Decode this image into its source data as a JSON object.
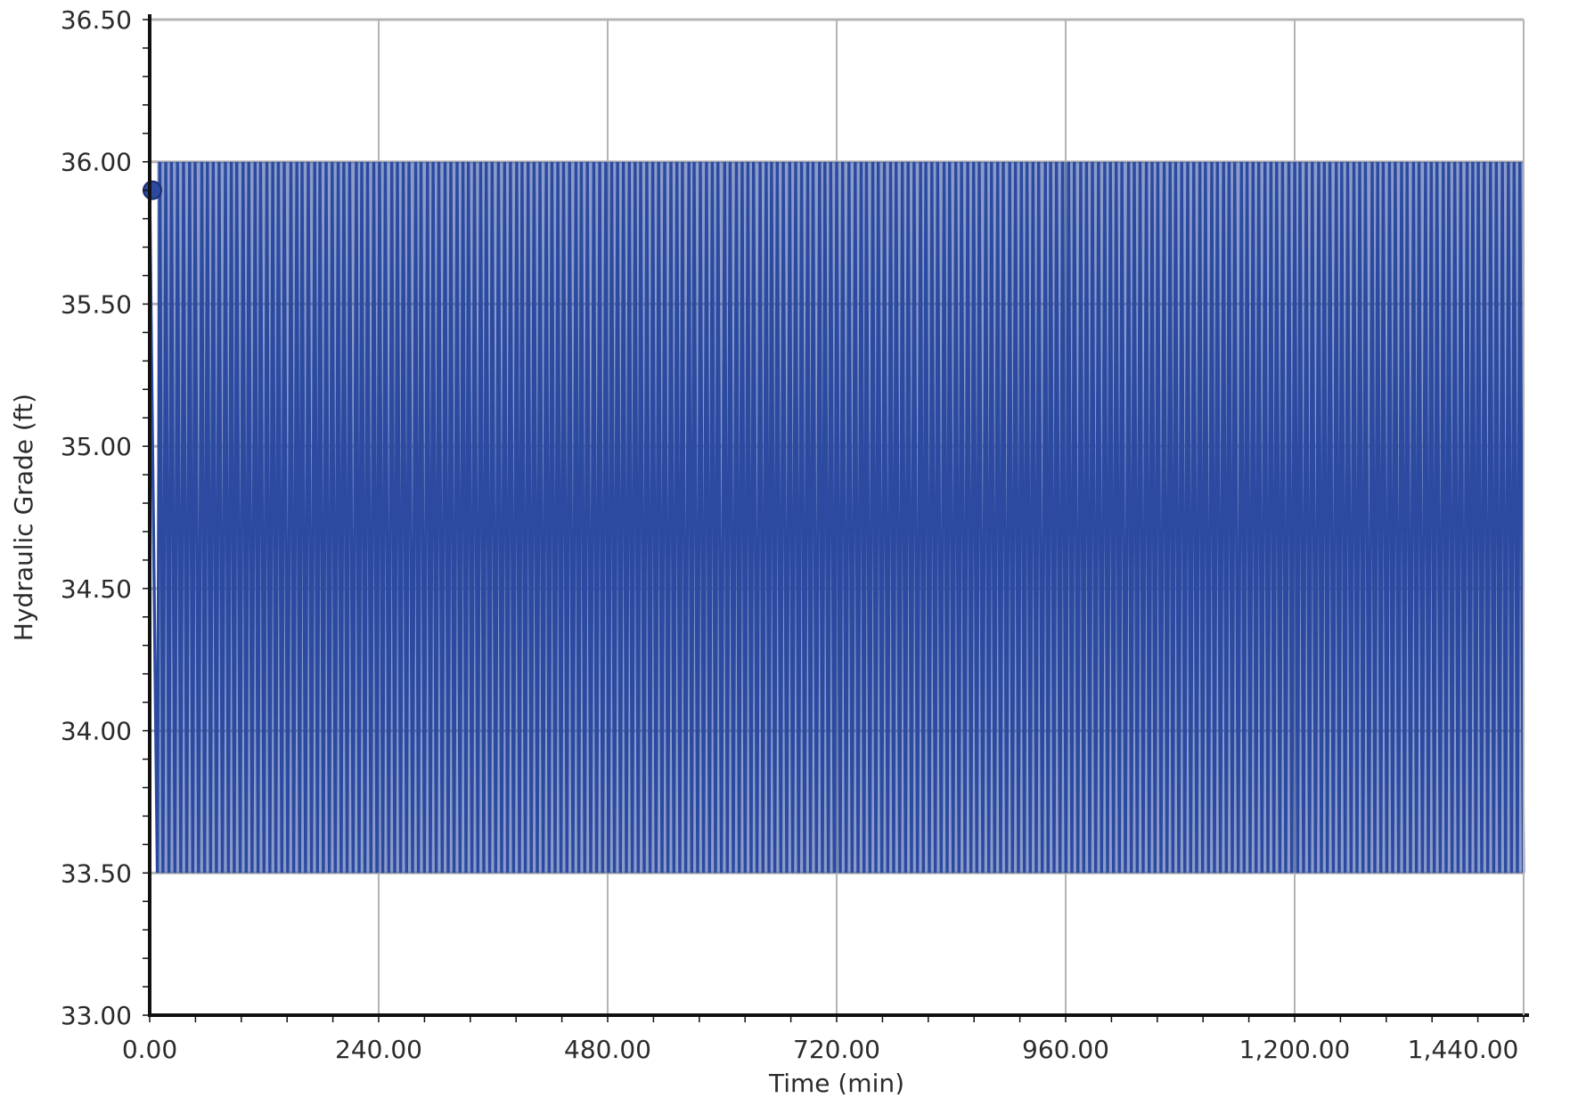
{
  "chart_data": {
    "type": "line",
    "title": "",
    "xlabel": "Time (min)",
    "ylabel": "Hydraulic Grade (ft)",
    "xlim": [
      0,
      1440
    ],
    "ylim": [
      33.0,
      36.5
    ],
    "x_ticks": [
      0,
      240,
      480,
      720,
      960,
      1200,
      1440
    ],
    "x_tick_labels": [
      "0.00",
      "240.00",
      "480.00",
      "720.00",
      "960.00",
      "1,200.00",
      "1,440.00"
    ],
    "y_ticks": [
      33.0,
      33.5,
      34.0,
      34.5,
      35.0,
      35.5,
      36.0,
      36.5
    ],
    "y_tick_labels": [
      "33.00",
      "33.50",
      "34.00",
      "34.50",
      "35.00",
      "35.50",
      "36.00",
      "36.50"
    ],
    "grid": true,
    "legend": "none",
    "series": [
      {
        "pattern": "rapid oscillation between approximately 33.50 and 36.00 over the whole time range",
        "min": 33.5,
        "max": 36.0,
        "cycle_count": 230,
        "start_point": {
          "x": 0,
          "y": 35.9
        },
        "color": "#2b4aa0"
      }
    ],
    "colors": {
      "series": "#2b4aa0",
      "grid": "#b4b4b4",
      "axis": "#111111",
      "background": "#ffffff"
    }
  }
}
